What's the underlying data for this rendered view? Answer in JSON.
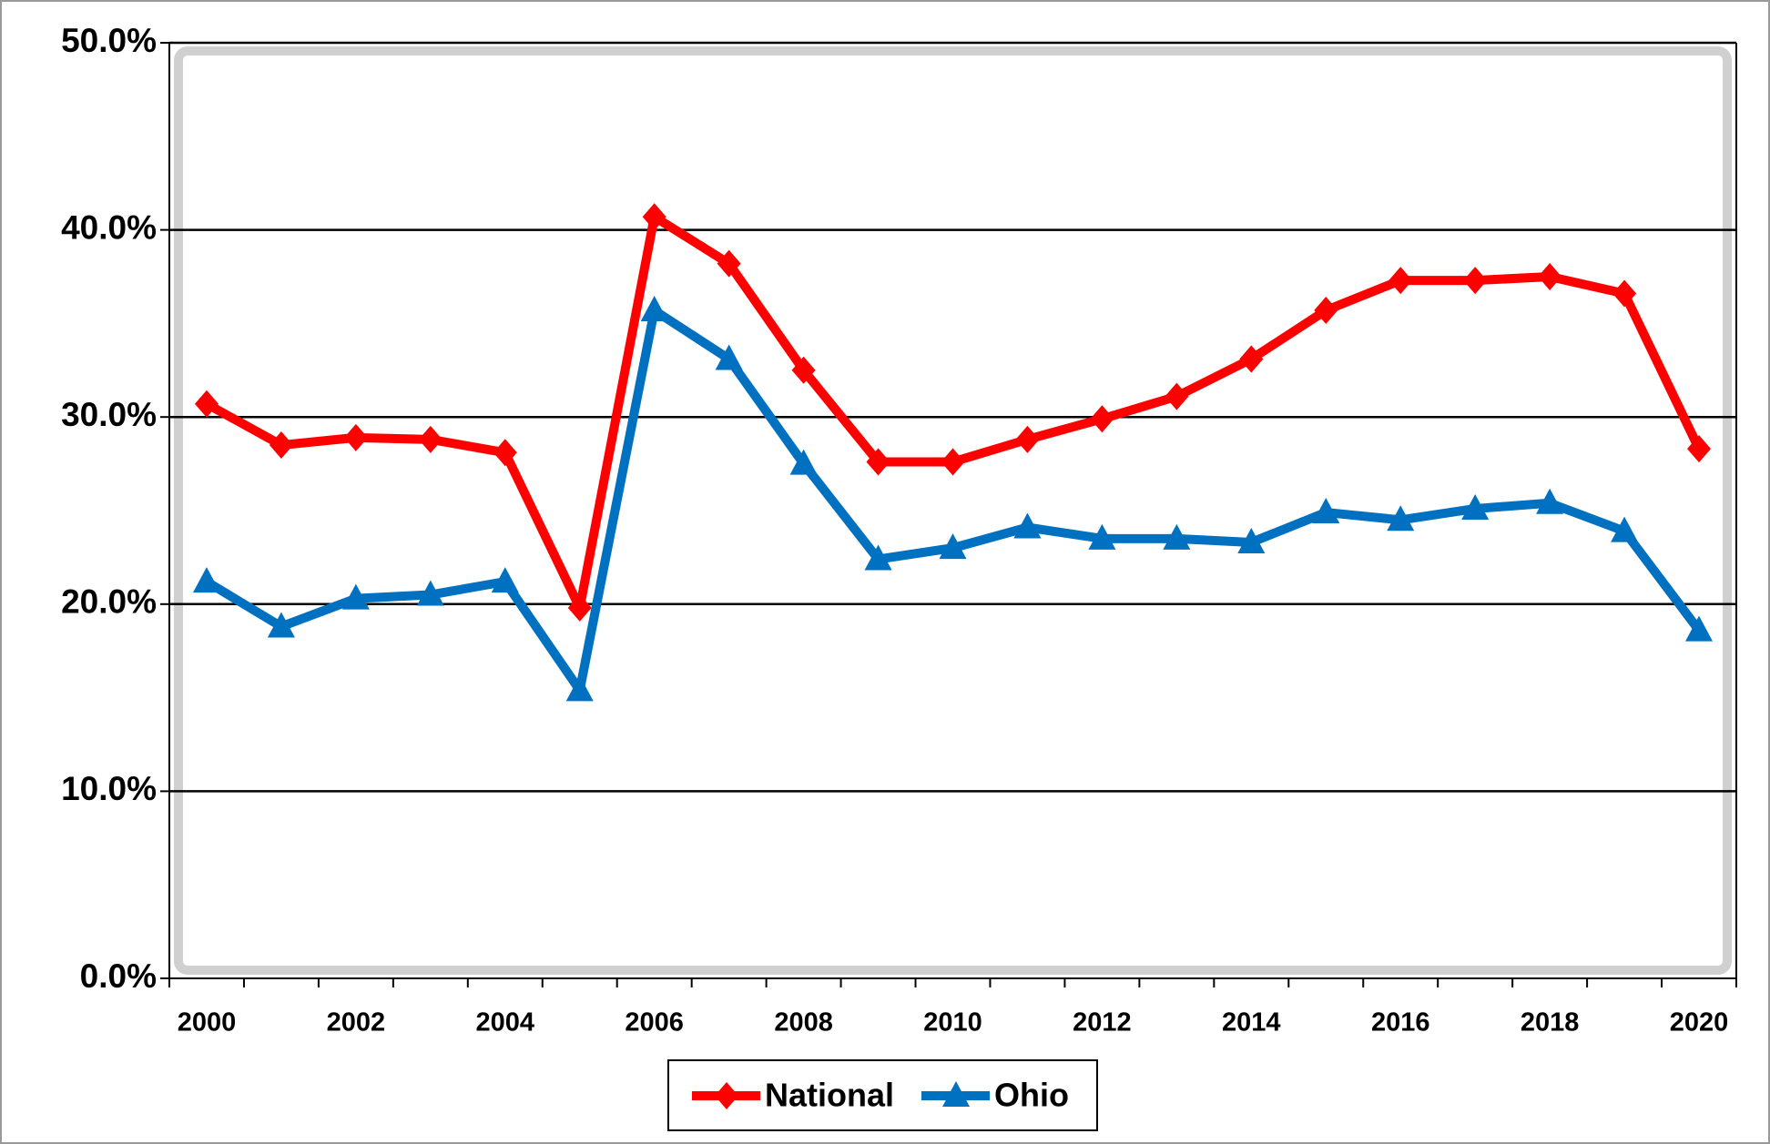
{
  "chart_data": {
    "type": "line",
    "categories": [
      "2000",
      null,
      "2002",
      null,
      "2004",
      null,
      "2006",
      null,
      "2008",
      null,
      "2010",
      null,
      "2012",
      null,
      "2014",
      null,
      "2016",
      null,
      "2018",
      null,
      "2020"
    ],
    "series": [
      {
        "name": "National",
        "color": "#ff0000",
        "marker": "diamond",
        "values": [
          30.7,
          28.5,
          28.9,
          28.8,
          28.1,
          19.8,
          40.7,
          38.2,
          32.5,
          27.6,
          27.6,
          28.8,
          29.9,
          31.1,
          33.1,
          35.7,
          37.3,
          37.3,
          37.5,
          36.6,
          28.3
        ]
      },
      {
        "name": "Ohio",
        "color": "#0070c0",
        "marker": "triangle",
        "values": [
          21.2,
          18.8,
          20.3,
          20.5,
          21.2,
          15.4,
          35.7,
          33.1,
          27.5,
          22.4,
          23.0,
          24.1,
          23.5,
          23.5,
          23.3,
          24.9,
          24.5,
          25.1,
          25.4,
          23.9,
          18.6
        ]
      }
    ],
    "ylim": [
      0,
      50
    ],
    "yticks": [
      {
        "value": 0,
        "label": "0.0%"
      },
      {
        "value": 10,
        "label": "10.0%"
      },
      {
        "value": 20,
        "label": "20.0%"
      },
      {
        "value": 30,
        "label": "30.0%"
      },
      {
        "value": 40,
        "label": "40.0%"
      },
      {
        "value": 50,
        "label": "50.0%"
      }
    ],
    "grid": true,
    "legend": "bottom"
  }
}
